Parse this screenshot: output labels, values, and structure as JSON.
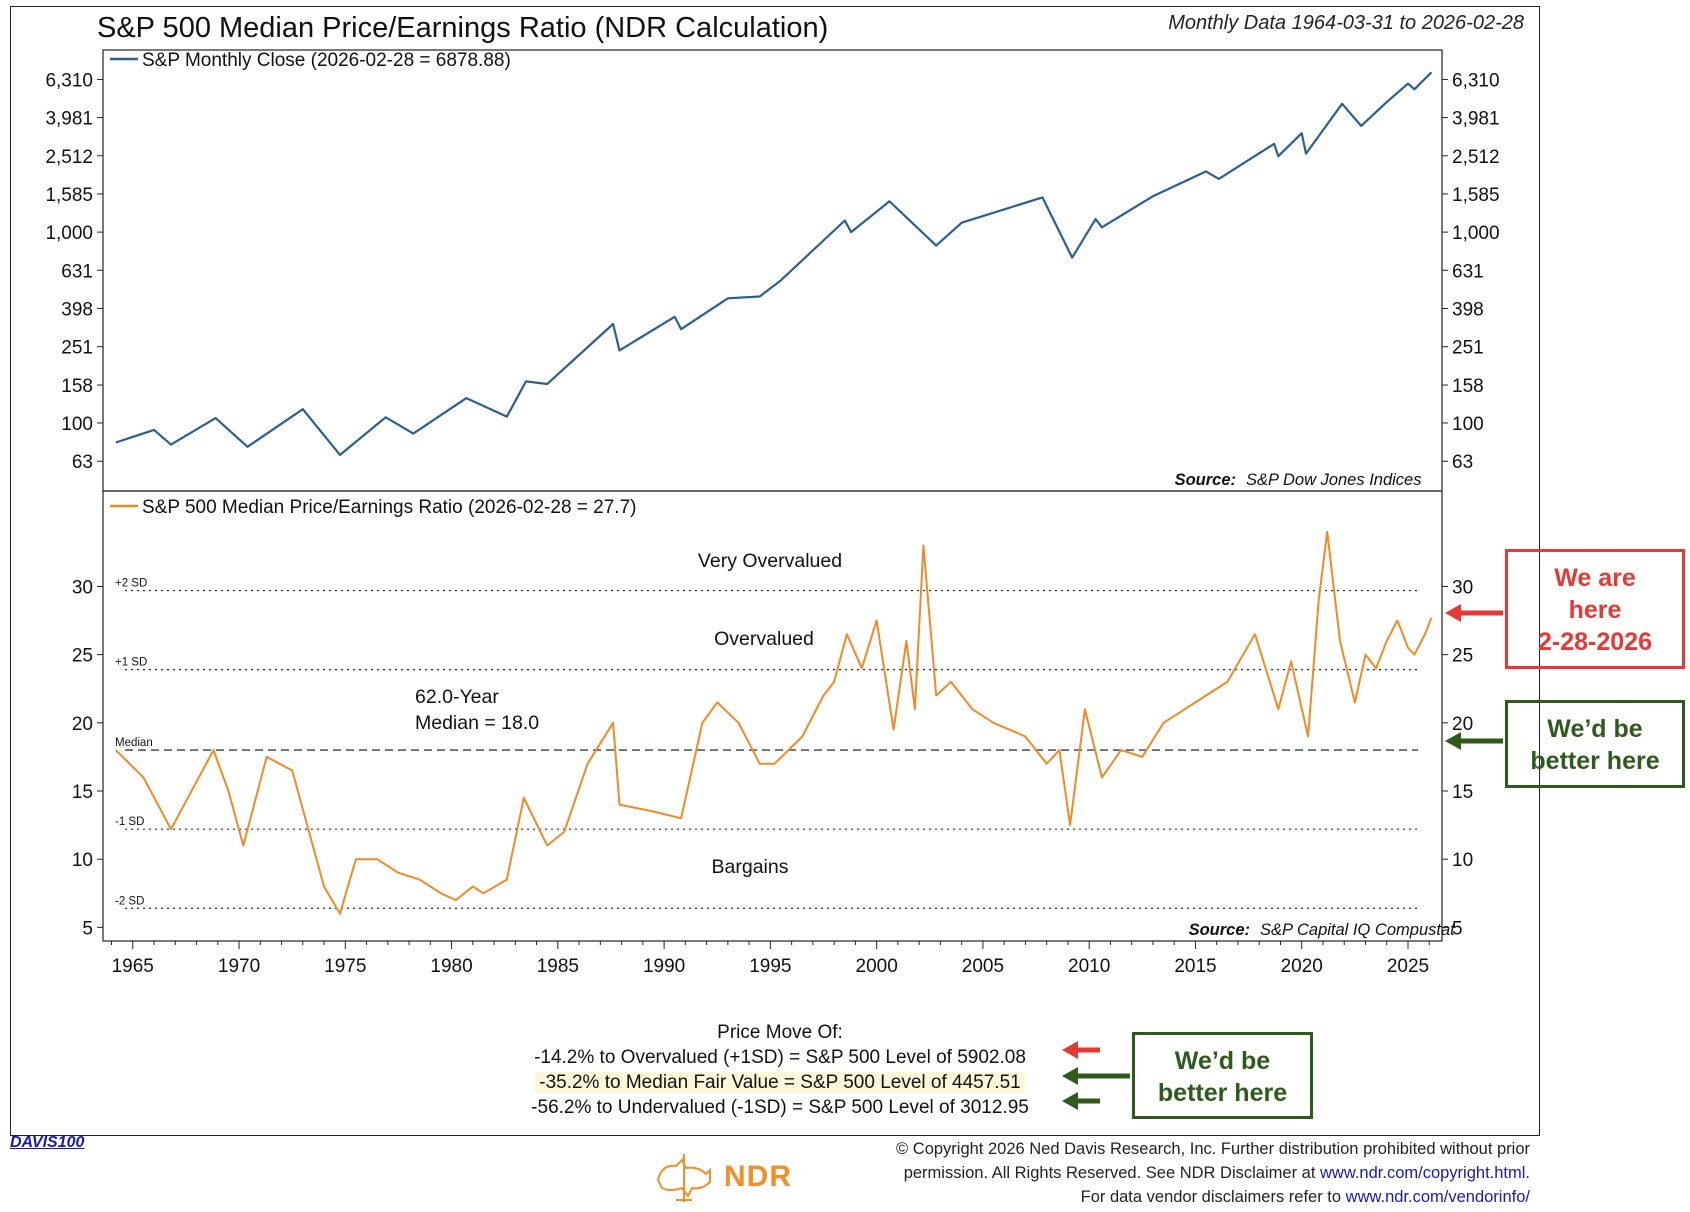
{
  "header": {
    "title": "S&P 500 Median Price/Earnings Ratio (NDR Calculation)",
    "date_range": "Monthly Data 1964-03-31 to 2026-02-28"
  },
  "colors": {
    "price_line": "#2b5f8e",
    "pe_line": "#ef8a28",
    "red": "#e53935",
    "green": "#2e5a1c"
  },
  "chart_data": [
    {
      "type": "line",
      "panel": "top",
      "scale": "log",
      "legend": "S&P Monthly Close (2026-02-28 = 6878.88)",
      "source_label": "Source:",
      "source_text": "S&P Dow Jones Indices",
      "y_ticks": [
        "6,310",
        "3,981",
        "2,512",
        "1,585",
        "1,000",
        "631",
        "398",
        "251",
        "158",
        "100",
        "63"
      ],
      "y_tick_values": [
        6310,
        3981,
        2512,
        1585,
        1000,
        631,
        398,
        251,
        158,
        100,
        63
      ],
      "ylim": [
        44,
        9000
      ],
      "xlim": [
        1963.6,
        2026.6
      ],
      "series": [
        {
          "name": "S&P Monthly Close",
          "x": [
            1964.2,
            1966.0,
            1966.8,
            1968.9,
            1970.4,
            1973.0,
            1974.75,
            1976.9,
            1978.2,
            1980.7,
            1982.6,
            1983.5,
            1984.5,
            1987.6,
            1987.9,
            1990.5,
            1990.8,
            1993.0,
            1994.5,
            1995.5,
            1998.5,
            1998.8,
            2000.6,
            2002.8,
            2004.0,
            2007.8,
            2009.2,
            2010.3,
            2010.6,
            2013.0,
            2015.5,
            2016.1,
            2018.7,
            2018.9,
            2020.0,
            2020.2,
            2021.9,
            2022.8,
            2024.0,
            2025.0,
            2025.3,
            2026.1
          ],
          "y": [
            79,
            92,
            77,
            106,
            75,
            118,
            68,
            107,
            88,
            135,
            108,
            165,
            160,
            330,
            240,
            360,
            310,
            450,
            460,
            560,
            1150,
            1000,
            1450,
            850,
            1120,
            1520,
            735,
            1170,
            1060,
            1540,
            2080,
            1900,
            2900,
            2500,
            3300,
            2580,
            4700,
            3600,
            4800,
            6000,
            5600,
            6879
          ]
        }
      ]
    },
    {
      "type": "line",
      "panel": "bottom",
      "legend": "S&P 500 Median Price/Earnings Ratio (2026-02-28 = 27.7)",
      "source_label": "Source:",
      "source_text": "S&P Capital IQ Compustat",
      "y_ticks": [
        "30",
        "25",
        "20",
        "15",
        "10",
        "5"
      ],
      "y_tick_values": [
        30,
        25,
        20,
        15,
        10,
        5
      ],
      "ylim": [
        4,
        37
      ],
      "xlim": [
        1963.6,
        2026.6
      ],
      "x_ticks": [
        "1965",
        "1970",
        "1975",
        "1980",
        "1985",
        "1990",
        "1995",
        "2000",
        "2005",
        "2010",
        "2015",
        "2020",
        "2025"
      ],
      "x_tick_values": [
        1965,
        1970,
        1975,
        1980,
        1985,
        1990,
        1995,
        2000,
        2005,
        2010,
        2015,
        2020,
        2025
      ],
      "reference_lines": [
        {
          "label": "+2 SD",
          "value": 29.7,
          "style": "dotted"
        },
        {
          "label": "+1 SD",
          "value": 23.9,
          "style": "dotted"
        },
        {
          "label": "Median",
          "value": 18.0,
          "style": "dashed"
        },
        {
          "label": "-1 SD",
          "value": 12.2,
          "style": "dotted"
        },
        {
          "label": "-2 SD",
          "value": 6.4,
          "style": "dotted"
        }
      ],
      "zone_labels": {
        "very_overvalued": "Very Overvalued",
        "overvalued": "Overvalued",
        "bargains": "Bargains"
      },
      "median_note": [
        "62.0-Year",
        "Median = 18.0"
      ],
      "series": [
        {
          "name": "S&P 500 Median P/E",
          "x": [
            1964.2,
            1965.5,
            1966.8,
            1968.8,
            1969.5,
            1970.2,
            1971.3,
            1972.5,
            1974.0,
            1974.75,
            1975.5,
            1976.5,
            1977.5,
            1978.5,
            1979.5,
            1980.2,
            1981.0,
            1981.5,
            1982.6,
            1983.4,
            1984.5,
            1985.3,
            1986.4,
            1987.6,
            1987.9,
            1989.5,
            1990.8,
            1991.8,
            1992.5,
            1993.5,
            1994.5,
            1995.2,
            1996.5,
            1997.5,
            1998.0,
            1998.6,
            1999.3,
            2000.0,
            2000.8,
            2001.4,
            2001.8,
            2002.2,
            2002.8,
            2003.5,
            2004.5,
            2005.5,
            2007.0,
            2008.0,
            2008.6,
            2009.1,
            2009.8,
            2010.6,
            2011.5,
            2012.5,
            2013.5,
            2014.5,
            2015.5,
            2016.5,
            2017.8,
            2018.9,
            2019.5,
            2020.3,
            2020.8,
            2021.2,
            2021.8,
            2022.5,
            2023.0,
            2023.5,
            2024.0,
            2024.5,
            2025.0,
            2025.3,
            2025.8,
            2026.1
          ],
          "y": [
            18,
            16,
            12.2,
            18,
            15,
            11,
            17.5,
            16.5,
            8,
            6,
            10,
            10,
            9,
            8.5,
            7.5,
            7,
            8,
            7.5,
            8.5,
            14.5,
            11,
            12,
            17,
            20,
            14,
            13.5,
            13,
            20,
            21.5,
            20,
            17,
            17,
            19,
            22,
            23,
            26.5,
            24,
            27.5,
            19.5,
            26,
            21,
            33,
            22,
            23,
            21,
            20,
            19,
            17,
            18,
            12.5,
            21,
            16,
            18,
            17.5,
            20,
            21,
            22,
            23,
            26.5,
            21,
            24.5,
            19,
            29,
            34,
            26,
            21.5,
            25,
            24,
            26,
            27.5,
            25.5,
            25,
            26.5,
            27.7
          ]
        }
      ]
    }
  ],
  "annotations": {
    "we_are_here": [
      "We are",
      "here",
      "2-28-2026"
    ],
    "better_here_right": [
      "We’d be",
      "better here"
    ],
    "better_here_bottom": [
      "We’d be",
      "better here"
    ]
  },
  "price_move": {
    "heading": "Price Move Of:",
    "overvalued": "-14.2% to Overvalued (+1SD) = S&P 500 Level of 5902.08",
    "median": "-35.2% to Median Fair Value = S&P 500 Level of 4457.51",
    "undervalued": "-56.2% to Undervalued (-1SD) = S&P 500 Level of 3012.95"
  },
  "footer": {
    "davis_code": "DAVIS100",
    "copyright_line1": "© Copyright 2026 Ned Davis Research, Inc. Further distribution prohibited without prior",
    "copyright_line2": "permission. All Rights Reserved. See NDR Disclaimer at",
    "copyright_link1": "www.ndr.com/copyright.html.",
    "copyright_line3": "For data vendor disclaimers refer to",
    "copyright_link2": "www.ndr.com/vendorinfo/",
    "logo_text": "NDR"
  }
}
